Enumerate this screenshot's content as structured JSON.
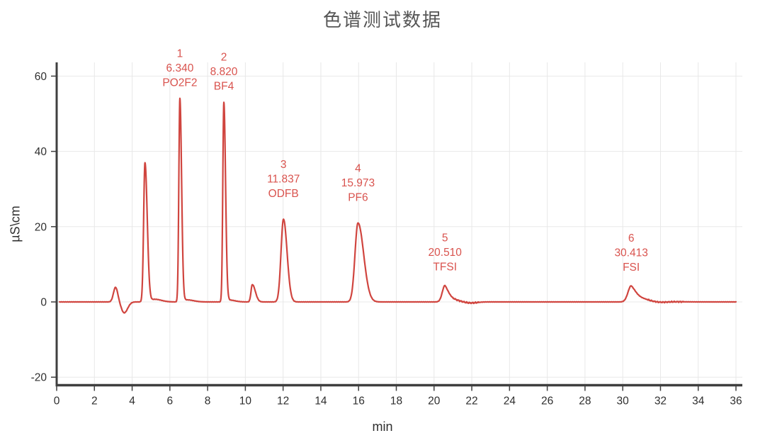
{
  "title": "色谱测试数据",
  "chart_data": {
    "type": "line",
    "title": "色谱测试数据",
    "xlabel": "min",
    "ylabel": "µS\\cm",
    "xlim": [
      0,
      36
    ],
    "ylim": [
      -22,
      64
    ],
    "x_ticks": [
      0,
      2,
      4,
      6,
      8,
      10,
      12,
      14,
      16,
      18,
      20,
      22,
      24,
      26,
      28,
      30,
      32,
      34,
      36
    ],
    "y_ticks": [
      -20,
      0,
      20,
      40,
      60
    ],
    "grid": true,
    "legend": "none",
    "colors": {
      "trace": "#d0453f",
      "annotation": "#d9534e",
      "axis": "#3f3f3f",
      "grid": "#e8e8e8",
      "tick_label": "#2f2f2f"
    },
    "peaks": [
      {
        "number": "1",
        "retention_time": "6.340",
        "analyte": "PO2F2",
        "height_uS_cm": 54.0,
        "rt_draw": 6.53,
        "sigma_left": 0.055,
        "sigma_right": 0.09
      },
      {
        "number": "2",
        "retention_time": "8.820",
        "analyte": "BF4",
        "height_uS_cm": 53.0,
        "rt_draw": 8.86,
        "sigma_left": 0.055,
        "sigma_right": 0.09
      },
      {
        "number": "3",
        "retention_time": "11.837",
        "analyte": "ODFB",
        "height_uS_cm": 22.0,
        "rt_draw": 12.02,
        "sigma_left": 0.13,
        "sigma_right": 0.19
      },
      {
        "number": "4",
        "retention_time": "15.973",
        "analyte": "PF6",
        "height_uS_cm": 21.0,
        "rt_draw": 15.97,
        "sigma_left": 0.16,
        "sigma_right": 0.3
      },
      {
        "number": "5",
        "retention_time": "20.510",
        "analyte": "TFSI",
        "height_uS_cm": 4.4,
        "rt_draw": 20.58,
        "sigma_left": 0.14,
        "tail_tau": 0.38
      },
      {
        "number": "6",
        "retention_time": "30.413",
        "analyte": "FSI",
        "height_uS_cm": 4.3,
        "rt_draw": 30.45,
        "sigma_left": 0.17,
        "tail_tau": 0.6
      }
    ],
    "unlabeled_features": [
      {
        "name": "injection-bump",
        "rt": 3.12,
        "height": 3.9,
        "sigma_left": 0.11,
        "sigma_right": 0.12
      },
      {
        "name": "injection-dip",
        "rt": 3.58,
        "height": -2.9,
        "sigma_left": 0.15,
        "sigma_right": 0.18
      },
      {
        "name": "void-peak",
        "rt": 4.68,
        "height": 37.0,
        "sigma_left": 0.07,
        "sigma_right": 0.12
      },
      {
        "name": "void-peak-shelf",
        "rt": 5.2,
        "height": 0.7,
        "sigma_left": 0.2,
        "sigma_right": 0.35
      },
      {
        "name": "shelf-after-peak-1",
        "rt": 6.9,
        "height": 0.55,
        "sigma_left": 0.2,
        "sigma_right": 0.35
      },
      {
        "name": "shelf-after-peak-2",
        "rt": 9.15,
        "height": 0.5,
        "sigma_left": 0.15,
        "sigma_right": 0.3
      },
      {
        "name": "minor-peak",
        "rt": 10.37,
        "height": 4.6,
        "sigma_left": 0.07,
        "sigma_right": 0.16
      },
      {
        "name": "baseline-dip-after-peak-5",
        "rt": 21.9,
        "height": -0.35,
        "sigma_left": 0.35,
        "sigma_right": 0.35
      },
      {
        "name": "baseline-dip-after-peak-6",
        "rt": 31.9,
        "height": -0.3,
        "sigma_left": 0.4,
        "sigma_right": 0.4
      }
    ],
    "noise_regions": [
      {
        "start": 21.0,
        "end": 22.4,
        "amplitude": 0.18
      },
      {
        "start": 31.3,
        "end": 33.2,
        "amplitude": 0.15
      }
    ]
  }
}
